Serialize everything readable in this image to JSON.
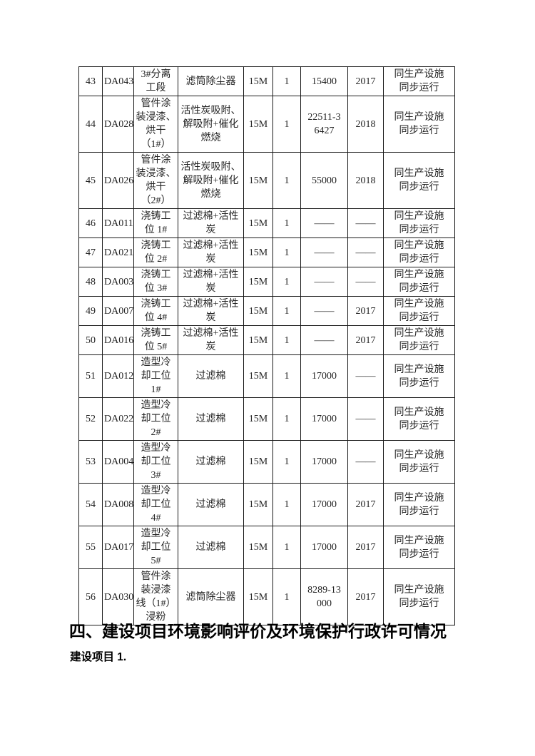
{
  "headings": {
    "section": "四、建设项目环境影响评价及环境保护行政许可情况",
    "project": "建设项目 1."
  },
  "table": {
    "rows": [
      {
        "no": "43",
        "code": "DA043",
        "source": "3#分离\n工段",
        "treatment": "滤筒除尘器",
        "height": "15M",
        "qty": "1",
        "value": "15400",
        "year": "2017",
        "status": "同生产设施\n同步运行"
      },
      {
        "no": "44",
        "code": "DA028",
        "source": "管件涂\n装浸漆、\n烘干\n（1#）",
        "treatment": "活性炭吸附、\n解吸附+催化\n燃烧",
        "height": "15M",
        "qty": "1",
        "value": "22511-3\n6427",
        "year": "2018",
        "status": "同生产设施\n同步运行"
      },
      {
        "no": "45",
        "code": "DA026",
        "source": "管件涂\n装浸漆、\n烘干\n（2#）",
        "treatment": "活性炭吸附、\n解吸附+催化\n燃烧",
        "height": "15M",
        "qty": "1",
        "value": "55000",
        "year": "2018",
        "status": "同生产设施\n同步运行"
      },
      {
        "no": "46",
        "code": "DA011",
        "source": "浇铸工\n位 1#",
        "treatment": "过滤棉+活性\n炭",
        "height": "15M",
        "qty": "1",
        "value": "——",
        "year": "——",
        "status": "同生产设施\n同步运行"
      },
      {
        "no": "47",
        "code": "DA021",
        "source": "浇铸工\n位 2#",
        "treatment": "过滤棉+活性\n炭",
        "height": "15M",
        "qty": "1",
        "value": "——",
        "year": "——",
        "status": "同生产设施\n同步运行"
      },
      {
        "no": "48",
        "code": "DA003",
        "source": "浇铸工\n位 3#",
        "treatment": "过滤棉+活性\n炭",
        "height": "15M",
        "qty": "1",
        "value": "——",
        "year": "——",
        "status": "同生产设施\n同步运行"
      },
      {
        "no": "49",
        "code": "DA007",
        "source": "浇铸工\n位 4#",
        "treatment": "过滤棉+活性\n炭",
        "height": "15M",
        "qty": "1",
        "value": "——",
        "year": "2017",
        "status": "同生产设施\n同步运行"
      },
      {
        "no": "50",
        "code": "DA016",
        "source": "浇铸工\n位 5#",
        "treatment": "过滤棉+活性\n炭",
        "height": "15M",
        "qty": "1",
        "value": "——",
        "year": "2017",
        "status": "同生产设施\n同步运行"
      },
      {
        "no": "51",
        "code": "DA012",
        "source": "造型冷\n却工位\n1#",
        "treatment": "过滤棉",
        "height": "15M",
        "qty": "1",
        "value": "17000",
        "year": "——",
        "status": "同生产设施\n同步运行"
      },
      {
        "no": "52",
        "code": "DA022",
        "source": "造型冷\n却工位\n2#",
        "treatment": "过滤棉",
        "height": "15M",
        "qty": "1",
        "value": "17000",
        "year": "——",
        "status": "同生产设施\n同步运行"
      },
      {
        "no": "53",
        "code": "DA004",
        "source": "造型冷\n却工位\n3#",
        "treatment": "过滤棉",
        "height": "15M",
        "qty": "1",
        "value": "17000",
        "year": "——",
        "status": "同生产设施\n同步运行"
      },
      {
        "no": "54",
        "code": "DA008",
        "source": "造型冷\n却工位\n4#",
        "treatment": "过滤棉",
        "height": "15M",
        "qty": "1",
        "value": "17000",
        "year": "2017",
        "status": "同生产设施\n同步运行"
      },
      {
        "no": "55",
        "code": "DA017",
        "source": "造型冷\n却工位\n5#",
        "treatment": "过滤棉",
        "height": "15M",
        "qty": "1",
        "value": "17000",
        "year": "2017",
        "status": "同生产设施\n同步运行"
      },
      {
        "no": "56",
        "code": "DA030",
        "source": "管件涂\n装浸漆\n线（1#）\n浸粉",
        "treatment": "滤筒除尘器",
        "height": "15M",
        "qty": "1",
        "value": "8289-13\n000",
        "year": "2017",
        "status": "同生产设施\n同步运行"
      }
    ]
  }
}
